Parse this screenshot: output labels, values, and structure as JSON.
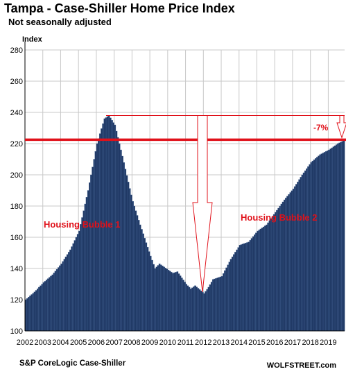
{
  "header": {
    "title": "Tampa - Case-Shiller Home Price Index",
    "subtitle": "Not seasonally adjusted"
  },
  "footer": {
    "source": "S&P CoreLogic Case-Shiller",
    "brand": "WOLFSTREET.com"
  },
  "colors": {
    "bar": "#1f3864",
    "bar_edge": "#4a6a9a",
    "annotation": "#e0111a",
    "grid": "#c8c8c8"
  },
  "chart_data": {
    "type": "bar",
    "ylabel": "Index",
    "ylim": [
      100,
      280
    ],
    "yticks": [
      100,
      120,
      140,
      160,
      180,
      200,
      220,
      240,
      260,
      280
    ],
    "grid": "both",
    "xticks": [
      "2002",
      "2003",
      "2004",
      "2005",
      "2006",
      "2007",
      "2008",
      "2009",
      "2010",
      "2011",
      "2012",
      "2013",
      "2014",
      "2015",
      "2016",
      "2017",
      "2018",
      "2019"
    ],
    "x_start": "2002-01",
    "frequency": "monthly",
    "anchors": [
      [
        "2002-01",
        120
      ],
      [
        "2002-07",
        125
      ],
      [
        "2003-01",
        131
      ],
      [
        "2003-07",
        136
      ],
      [
        "2004-01",
        143
      ],
      [
        "2004-07",
        152
      ],
      [
        "2005-01",
        164
      ],
      [
        "2005-07",
        190
      ],
      [
        "2006-01",
        220
      ],
      [
        "2006-06",
        236
      ],
      [
        "2006-09",
        238
      ],
      [
        "2007-01",
        232
      ],
      [
        "2007-06",
        212
      ],
      [
        "2008-01",
        183
      ],
      [
        "2008-06",
        168
      ],
      [
        "2009-01",
        148
      ],
      [
        "2009-04",
        140
      ],
      [
        "2009-07",
        143
      ],
      [
        "2010-01",
        139
      ],
      [
        "2010-04",
        137
      ],
      [
        "2010-07",
        138
      ],
      [
        "2011-01",
        130
      ],
      [
        "2011-04",
        127
      ],
      [
        "2011-07",
        129
      ],
      [
        "2012-01",
        124
      ],
      [
        "2012-04",
        128
      ],
      [
        "2012-07",
        133
      ],
      [
        "2013-01",
        135
      ],
      [
        "2013-07",
        146
      ],
      [
        "2014-01",
        155
      ],
      [
        "2014-07",
        157
      ],
      [
        "2015-01",
        164
      ],
      [
        "2015-07",
        168
      ],
      [
        "2016-01",
        176
      ],
      [
        "2016-07",
        184
      ],
      [
        "2017-01",
        191
      ],
      [
        "2017-07",
        200
      ],
      [
        "2018-01",
        208
      ],
      [
        "2018-07",
        213
      ],
      [
        "2019-01",
        216
      ],
      [
        "2019-07",
        220
      ],
      [
        "2019-11",
        222
      ]
    ],
    "annotations": {
      "bubble1_label": "Housing Bubble 1",
      "bubble2_label": "Housing Bubble 2",
      "change_label": "-7%",
      "current_level": 222.5,
      "peak_level": 238
    }
  }
}
